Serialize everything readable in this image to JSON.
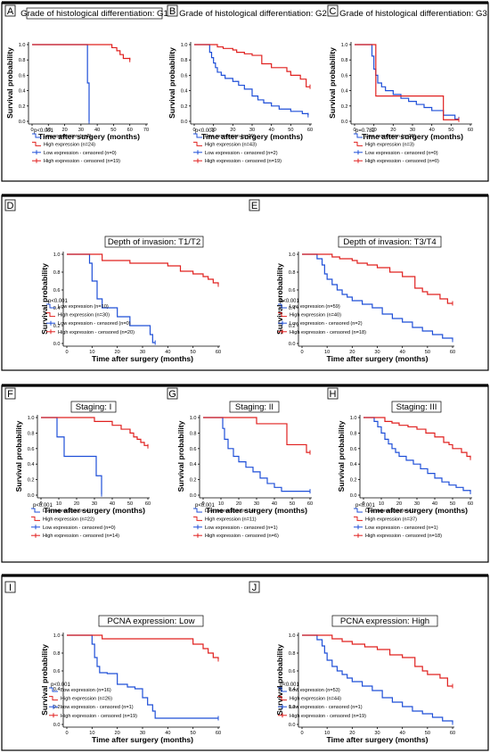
{
  "colors": {
    "low": "#1f4fd8",
    "high": "#e0201f",
    "frame": "#000000"
  },
  "axis": {
    "y_label": "Survival probability",
    "x_label": "Time after surgery (months)"
  },
  "chart_data": [
    {
      "letter": "A",
      "title": "Grade of histological differentiation: G1",
      "pvalue": "p<0.001",
      "type": "line",
      "xlim": [
        0,
        70
      ],
      "ylim": [
        0,
        1
      ],
      "xticks": [
        0,
        10,
        20,
        30,
        40,
        50,
        60,
        70
      ],
      "yticks": [
        0.0,
        0.2,
        0.4,
        0.6,
        0.8,
        1.0
      ],
      "legend": [
        "Low expression (n=2)",
        "High expression (n=24)",
        "Low expression - censored (n=0)",
        "High expression - censored (n=19)"
      ],
      "series": [
        {
          "name": "Low expression",
          "x": [
            0,
            34,
            34,
            35,
            35
          ],
          "y": [
            1,
            1,
            0.5,
            0.5,
            0
          ]
        },
        {
          "name": "High expression",
          "x": [
            0,
            48,
            49,
            52,
            54,
            56,
            60
          ],
          "y": [
            1,
            1,
            0.96,
            0.92,
            0.87,
            0.82,
            0.8
          ]
        }
      ]
    },
    {
      "letter": "B",
      "title": "Grade of histological differentiation: G2",
      "pvalue": "p<0.001",
      "type": "line",
      "xlim": [
        0,
        60
      ],
      "ylim": [
        0,
        1
      ],
      "xticks": [
        0,
        10,
        20,
        30,
        40,
        50,
        60
      ],
      "yticks": [
        0.0,
        0.2,
        0.4,
        0.6,
        0.8,
        1.0
      ],
      "legend": [
        "Low expression (n=29)",
        "High expression (n=43)",
        "Low expression - censored (n=2)",
        "High expression - censored (n=19)"
      ],
      "series": [
        {
          "name": "Low expression",
          "x": [
            0,
            8,
            9,
            10,
            11,
            12,
            14,
            16,
            20,
            23,
            26,
            30,
            33,
            36,
            40,
            44,
            50,
            56,
            59
          ],
          "y": [
            1,
            0.9,
            0.83,
            0.76,
            0.7,
            0.64,
            0.6,
            0.56,
            0.52,
            0.47,
            0.42,
            0.33,
            0.28,
            0.24,
            0.2,
            0.16,
            0.13,
            0.1,
            0.08
          ]
        },
        {
          "name": "High expression",
          "x": [
            0,
            10,
            12,
            15,
            20,
            22,
            26,
            30,
            35,
            40,
            48,
            50,
            55,
            58,
            60
          ],
          "y": [
            1,
            1,
            0.97,
            0.95,
            0.93,
            0.9,
            0.88,
            0.86,
            0.75,
            0.7,
            0.65,
            0.6,
            0.55,
            0.45,
            0.45
          ]
        }
      ]
    },
    {
      "letter": "C",
      "title": "Grade of histological differentiation: G3",
      "pvalue": "p=0.782",
      "type": "line",
      "xlim": [
        0,
        60
      ],
      "ylim": [
        0,
        1
      ],
      "xticks": [
        0,
        10,
        20,
        30,
        40,
        50,
        60
      ],
      "yticks": [
        0.0,
        0.2,
        0.4,
        0.6,
        0.8,
        1.0
      ],
      "legend": [
        "Low expression (n=38)",
        "High expression (n=3)",
        "Low expression - censored (n=0)",
        "High expression - censored (n=0)"
      ],
      "series": [
        {
          "name": "Low expression",
          "x": [
            0,
            8,
            9,
            10,
            11,
            12,
            14,
            16,
            20,
            24,
            28,
            32,
            36,
            40,
            46,
            52,
            54
          ],
          "y": [
            1,
            1,
            0.85,
            0.68,
            0.6,
            0.5,
            0.45,
            0.4,
            0.35,
            0.3,
            0.26,
            0.22,
            0.18,
            0.14,
            0.08,
            0.03,
            0.03
          ]
        },
        {
          "name": "High expression",
          "x": [
            0,
            10,
            11,
            45,
            46,
            54
          ],
          "y": [
            1,
            1,
            0.33,
            0.33,
            0.02,
            0.02
          ]
        }
      ]
    },
    {
      "letter": "D",
      "title": "Depth of invasion: T1/T2",
      "pvalue": "p<0.001",
      "type": "line",
      "xlim": [
        0,
        60
      ],
      "ylim": [
        0,
        1
      ],
      "xticks": [
        0,
        10,
        20,
        30,
        40,
        50,
        60
      ],
      "yticks": [
        0.0,
        0.2,
        0.4,
        0.6,
        0.8,
        1.0
      ],
      "legend": [
        "Low expression (n=10)",
        "High expression (n=30)",
        "Low expression - censored (n=0)",
        "High expression - censored (n=20)"
      ],
      "series": [
        {
          "name": "Low expression",
          "x": [
            0,
            8,
            9,
            10,
            12,
            14,
            20,
            25,
            33,
            34,
            35
          ],
          "y": [
            1,
            1,
            0.9,
            0.7,
            0.5,
            0.4,
            0.3,
            0.2,
            0.1,
            0.01,
            0.01
          ]
        },
        {
          "name": "High expression",
          "x": [
            0,
            12,
            14,
            25,
            40,
            45,
            50,
            54,
            56,
            58,
            60
          ],
          "y": [
            1,
            1,
            0.93,
            0.9,
            0.87,
            0.81,
            0.78,
            0.75,
            0.72,
            0.68,
            0.66
          ]
        }
      ]
    },
    {
      "letter": "E",
      "title": "Depth of invasion: T3/T4",
      "pvalue": "p<0.001",
      "type": "line",
      "xlim": [
        0,
        60
      ],
      "ylim": [
        0,
        1
      ],
      "xticks": [
        0,
        10,
        20,
        30,
        40,
        50,
        60
      ],
      "yticks": [
        0.0,
        0.2,
        0.4,
        0.6,
        0.8,
        1.0
      ],
      "legend": [
        "Low expression (n=59)",
        "High expression (n=40)",
        "Low expression - censored (n=2)",
        "High expression - censored (n=18)"
      ],
      "series": [
        {
          "name": "Low expression",
          "x": [
            0,
            6,
            8,
            9,
            10,
            12,
            14,
            16,
            18,
            20,
            24,
            28,
            32,
            36,
            40,
            44,
            48,
            52,
            56,
            60
          ],
          "y": [
            1,
            0.95,
            0.88,
            0.78,
            0.72,
            0.66,
            0.6,
            0.55,
            0.52,
            0.48,
            0.44,
            0.4,
            0.33,
            0.28,
            0.24,
            0.18,
            0.14,
            0.1,
            0.06,
            0.04
          ]
        },
        {
          "name": "High expression",
          "x": [
            0,
            10,
            12,
            15,
            20,
            22,
            26,
            30,
            35,
            40,
            45,
            48,
            50,
            55,
            58,
            60
          ],
          "y": [
            1,
            1,
            0.97,
            0.95,
            0.93,
            0.9,
            0.88,
            0.85,
            0.8,
            0.75,
            0.62,
            0.58,
            0.55,
            0.5,
            0.45,
            0.45
          ]
        }
      ]
    },
    {
      "letter": "F",
      "title": "Staging: I",
      "pvalue": "p<0.001",
      "type": "line",
      "xlim": [
        0,
        60
      ],
      "ylim": [
        0,
        1
      ],
      "xticks": [
        0,
        10,
        20,
        30,
        40,
        50,
        60
      ],
      "yticks": [
        0.0,
        0.2,
        0.4,
        0.6,
        0.8,
        1.0
      ],
      "legend": [
        "Low expression (n=4)",
        "High expression (n=22)",
        "Low expression - censored (n=0)",
        "High expression - censored (n=14)"
      ],
      "series": [
        {
          "name": "Low expression",
          "x": [
            0,
            8,
            9,
            12,
            13,
            30,
            31,
            33,
            34
          ],
          "y": [
            1,
            1,
            0.75,
            0.75,
            0.5,
            0.5,
            0.25,
            0.25,
            0.01
          ]
        },
        {
          "name": "High expression",
          "x": [
            0,
            25,
            30,
            40,
            45,
            50,
            52,
            54,
            56,
            58,
            60
          ],
          "y": [
            1,
            1,
            0.95,
            0.9,
            0.85,
            0.8,
            0.75,
            0.72,
            0.68,
            0.64,
            0.63
          ]
        }
      ]
    },
    {
      "letter": "G",
      "title": "Staging: II",
      "pvalue": "p<0.001",
      "type": "line",
      "xlim": [
        0,
        60
      ],
      "ylim": [
        0,
        1
      ],
      "xticks": [
        0,
        10,
        20,
        30,
        40,
        50,
        60
      ],
      "yticks": [
        0.0,
        0.2,
        0.4,
        0.6,
        0.8,
        1.0
      ],
      "legend": [
        "Low expression (n=14)",
        "High expression (n=11)",
        "Low expression - censored (n=1)",
        "High expression - censored (n=6)"
      ],
      "series": [
        {
          "name": "Low expression",
          "x": [
            0,
            10,
            11,
            12,
            14,
            17,
            20,
            24,
            28,
            32,
            36,
            40,
            44,
            50,
            60
          ],
          "y": [
            1,
            1,
            0.86,
            0.72,
            0.6,
            0.5,
            0.43,
            0.36,
            0.3,
            0.22,
            0.15,
            0.1,
            0.05,
            0.05,
            0.05
          ]
        },
        {
          "name": "High expression",
          "x": [
            0,
            28,
            30,
            45,
            47,
            58,
            60
          ],
          "y": [
            1,
            1,
            0.92,
            0.92,
            0.65,
            0.55,
            0.55
          ]
        }
      ]
    },
    {
      "letter": "H",
      "title": "Staging: III",
      "pvalue": "p<0.001",
      "type": "line",
      "xlim": [
        0,
        60
      ],
      "ylim": [
        0,
        1
      ],
      "xticks": [
        0,
        10,
        20,
        30,
        40,
        50,
        60
      ],
      "yticks": [
        0.0,
        0.2,
        0.4,
        0.6,
        0.8,
        1.0
      ],
      "legend": [
        "Low expression (n=41)",
        "High expression (n=37)",
        "Low expression - censored (n=1)",
        "High expression - censored (n=18)"
      ],
      "series": [
        {
          "name": "Low expression",
          "x": [
            0,
            6,
            8,
            10,
            12,
            14,
            16,
            18,
            20,
            24,
            28,
            32,
            36,
            40,
            44,
            48,
            52,
            56,
            60
          ],
          "y": [
            1,
            0.95,
            0.88,
            0.8,
            0.72,
            0.66,
            0.6,
            0.55,
            0.5,
            0.45,
            0.4,
            0.34,
            0.28,
            0.22,
            0.17,
            0.13,
            0.1,
            0.06,
            0.04
          ]
        },
        {
          "name": "High expression",
          "x": [
            0,
            10,
            12,
            16,
            20,
            25,
            30,
            35,
            40,
            45,
            48,
            50,
            55,
            58,
            60
          ],
          "y": [
            1,
            1,
            0.95,
            0.93,
            0.9,
            0.88,
            0.85,
            0.8,
            0.75,
            0.68,
            0.65,
            0.6,
            0.55,
            0.5,
            0.48
          ]
        }
      ]
    },
    {
      "letter": "I",
      "title": "PCNA expression: Low",
      "pvalue": "p<0.001",
      "type": "line",
      "xlim": [
        0,
        60
      ],
      "ylim": [
        0,
        1
      ],
      "xticks": [
        0,
        10,
        20,
        30,
        40,
        50,
        60
      ],
      "yticks": [
        0.0,
        0.2,
        0.4,
        0.6,
        0.8,
        1.0
      ],
      "legend": [
        "Low expression (n=16)",
        "High expression (n=26)",
        "Low expression - censored (n=1)",
        "High expression - censored (n=19)"
      ],
      "series": [
        {
          "name": "Low expression",
          "x": [
            0,
            9,
            10,
            11,
            12,
            13,
            16,
            20,
            24,
            27,
            30,
            32,
            34,
            35,
            60
          ],
          "y": [
            1,
            1,
            0.9,
            0.75,
            0.65,
            0.58,
            0.57,
            0.45,
            0.42,
            0.4,
            0.3,
            0.22,
            0.15,
            0.07,
            0.07
          ]
        },
        {
          "name": "High expression",
          "x": [
            0,
            12,
            14,
            48,
            50,
            54,
            56,
            58,
            60
          ],
          "y": [
            1,
            1,
            0.96,
            0.96,
            0.9,
            0.85,
            0.8,
            0.75,
            0.73
          ]
        }
      ]
    },
    {
      "letter": "J",
      "title": "PCNA expression: High",
      "pvalue": "p<0.001",
      "type": "line",
      "xlim": [
        0,
        60
      ],
      "ylim": [
        0,
        1
      ],
      "xticks": [
        0,
        10,
        20,
        30,
        40,
        50,
        60
      ],
      "yticks": [
        0.0,
        0.2,
        0.4,
        0.6,
        0.8,
        1.0
      ],
      "legend": [
        "Low expression (n=53)",
        "High expression (n=44)",
        "Low expression - censored (n=1)",
        "High expression - censored (n=19)"
      ],
      "series": [
        {
          "name": "Low expression",
          "x": [
            0,
            6,
            8,
            9,
            10,
            12,
            14,
            16,
            18,
            20,
            24,
            28,
            32,
            36,
            40,
            44,
            48,
            52,
            56,
            60
          ],
          "y": [
            1,
            0.95,
            0.88,
            0.8,
            0.72,
            0.65,
            0.6,
            0.56,
            0.52,
            0.48,
            0.43,
            0.38,
            0.3,
            0.25,
            0.2,
            0.15,
            0.12,
            0.08,
            0.04,
            0.02
          ]
        },
        {
          "name": "High expression",
          "x": [
            0,
            10,
            12,
            16,
            20,
            25,
            30,
            35,
            40,
            45,
            48,
            50,
            55,
            58,
            60
          ],
          "y": [
            1,
            1,
            0.96,
            0.93,
            0.9,
            0.87,
            0.84,
            0.78,
            0.75,
            0.65,
            0.6,
            0.56,
            0.52,
            0.43,
            0.43
          ]
        }
      ]
    }
  ]
}
